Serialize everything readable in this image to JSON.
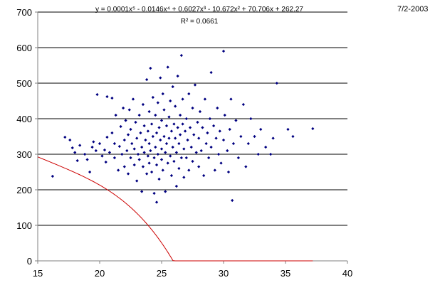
{
  "date_stamp": "7/2-2003",
  "trendline": {
    "equation": "y = 0.0001x⁵ - 0.0146x⁴ + 0.6027x³ - 10.672x² + 70.706x + 262.27",
    "r_squared": "R² = 0.0661",
    "coefficients": [
      0.0001,
      -0.0146,
      0.6027,
      -10.672,
      70.706,
      262.27
    ],
    "x_range": [
      15,
      37.2
    ],
    "color": "#cc0000"
  },
  "chart_data": {
    "type": "scatter",
    "title": "",
    "xlabel": "",
    "ylabel": "",
    "xlim": [
      15,
      40
    ],
    "ylim": [
      0,
      700
    ],
    "x_ticks": [
      15,
      20,
      25,
      30,
      35,
      40
    ],
    "y_ticks": [
      0,
      100,
      200,
      300,
      400,
      500,
      600,
      700
    ],
    "grid": "horizontal",
    "legend": "none",
    "marker_color": "#000080",
    "series": [
      {
        "points": [
          [
            16.2,
            238
          ],
          [
            17.2,
            348
          ],
          [
            17.6,
            340
          ],
          [
            17.8,
            318
          ],
          [
            18.0,
            305
          ],
          [
            18.2,
            282
          ],
          [
            18.4,
            325
          ],
          [
            18.8,
            300
          ],
          [
            19.0,
            285
          ],
          [
            19.2,
            250
          ],
          [
            19.4,
            320
          ],
          [
            19.5,
            335
          ],
          [
            19.7,
            310
          ],
          [
            19.8,
            468
          ],
          [
            20.0,
            330
          ],
          [
            20.2,
            295
          ],
          [
            20.4,
            312
          ],
          [
            20.5,
            278
          ],
          [
            20.6,
            348
          ],
          [
            20.6,
            462
          ],
          [
            20.8,
            305
          ],
          [
            21.0,
            360
          ],
          [
            21.0,
            458
          ],
          [
            21.2,
            290
          ],
          [
            21.2,
            330
          ],
          [
            21.3,
            410
          ],
          [
            21.5,
            255
          ],
          [
            21.6,
            322
          ],
          [
            21.7,
            378
          ],
          [
            21.8,
            300
          ],
          [
            21.9,
            430
          ],
          [
            22.0,
            265
          ],
          [
            22.0,
            340
          ],
          [
            22.1,
            395
          ],
          [
            22.2,
            310
          ],
          [
            22.3,
            245
          ],
          [
            22.3,
            355
          ],
          [
            22.4,
            425
          ],
          [
            22.5,
            290
          ],
          [
            22.5,
            370
          ],
          [
            22.6,
            330
          ],
          [
            22.7,
            455
          ],
          [
            22.8,
            270
          ],
          [
            22.8,
            315
          ],
          [
            22.9,
            390
          ],
          [
            23.0,
            225
          ],
          [
            23.0,
            345
          ],
          [
            23.1,
            300
          ],
          [
            23.2,
            410
          ],
          [
            23.2,
            285
          ],
          [
            23.3,
            360
          ],
          [
            23.4,
            195
          ],
          [
            23.4,
            320
          ],
          [
            23.5,
            440
          ],
          [
            23.5,
            265
          ],
          [
            23.6,
            380
          ],
          [
            23.6,
            305
          ],
          [
            23.7,
            340
          ],
          [
            23.8,
            245
          ],
          [
            23.8,
            510
          ],
          [
            23.9,
            295
          ],
          [
            23.9,
            365
          ],
          [
            24.0,
            420
          ],
          [
            24.0,
            275
          ],
          [
            24.0,
            330
          ],
          [
            24.1,
            542
          ],
          [
            24.1,
            310
          ],
          [
            24.2,
            385
          ],
          [
            24.2,
            250
          ],
          [
            24.3,
            350
          ],
          [
            24.3,
            460
          ],
          [
            24.4,
            290
          ],
          [
            24.4,
            190
          ],
          [
            24.5,
            410
          ],
          [
            24.5,
            320
          ],
          [
            24.6,
            165
          ],
          [
            24.6,
            360
          ],
          [
            24.6,
            270
          ],
          [
            24.7,
            445
          ],
          [
            24.7,
            300
          ],
          [
            24.8,
            375
          ],
          [
            24.8,
            230
          ],
          [
            24.9,
            340
          ],
          [
            24.9,
            515
          ],
          [
            25.0,
            285
          ],
          [
            25.0,
            395
          ],
          [
            25.0,
            315
          ],
          [
            25.1,
            470
          ],
          [
            25.1,
            255
          ],
          [
            25.2,
            350
          ],
          [
            25.2,
            425
          ],
          [
            25.3,
            305
          ],
          [
            25.3,
            195
          ],
          [
            25.4,
            380
          ],
          [
            25.4,
            330
          ],
          [
            25.5,
            545
          ],
          [
            25.5,
            275
          ],
          [
            25.6,
            405
          ],
          [
            25.6,
            345
          ],
          [
            25.7,
            295
          ],
          [
            25.7,
            450
          ],
          [
            25.8,
            365
          ],
          [
            25.8,
            240
          ],
          [
            25.9,
            320
          ],
          [
            25.9,
            490
          ],
          [
            26.0,
            385
          ],
          [
            26.0,
            280
          ],
          [
            26.1,
            345
          ],
          [
            26.1,
            435
          ],
          [
            26.2,
            305
          ],
          [
            26.2,
            210
          ],
          [
            26.3,
            375
          ],
          [
            26.3,
            520
          ],
          [
            26.4,
            330
          ],
          [
            26.4,
            260
          ],
          [
            26.5,
            410
          ],
          [
            26.5,
            355
          ],
          [
            26.6,
            578
          ],
          [
            26.6,
            290
          ],
          [
            26.7,
            385
          ],
          [
            26.7,
            455
          ],
          [
            26.8,
            315
          ],
          [
            26.8,
            235
          ],
          [
            26.9,
            365
          ],
          [
            27.0,
            400
          ],
          [
            27.0,
            290
          ],
          [
            27.1,
            340
          ],
          [
            27.2,
            470
          ],
          [
            27.2,
            255
          ],
          [
            27.3,
            375
          ],
          [
            27.4,
            320
          ],
          [
            27.5,
            430
          ],
          [
            27.5,
            280
          ],
          [
            27.6,
            355
          ],
          [
            27.7,
            495
          ],
          [
            27.8,
            305
          ],
          [
            27.9,
            390
          ],
          [
            28.0,
            265
          ],
          [
            28.0,
            345
          ],
          [
            28.1,
            420
          ],
          [
            28.2,
            310
          ],
          [
            28.3,
            375
          ],
          [
            28.4,
            240
          ],
          [
            28.5,
            455
          ],
          [
            28.6,
            330
          ],
          [
            28.7,
            360
          ],
          [
            28.8,
            290
          ],
          [
            28.9,
            400
          ],
          [
            29.0,
            530
          ],
          [
            29.0,
            320
          ],
          [
            29.2,
            380
          ],
          [
            29.3,
            255
          ],
          [
            29.4,
            345
          ],
          [
            29.5,
            430
          ],
          [
            29.6,
            300
          ],
          [
            29.7,
            365
          ],
          [
            29.8,
            275
          ],
          [
            30.0,
            590
          ],
          [
            30.0,
            340
          ],
          [
            30.1,
            410
          ],
          [
            30.3,
            310
          ],
          [
            30.4,
            250
          ],
          [
            30.5,
            370
          ],
          [
            30.6,
            455
          ],
          [
            30.7,
            170
          ],
          [
            30.8,
            330
          ],
          [
            31.0,
            395
          ],
          [
            31.2,
            290
          ],
          [
            31.4,
            350
          ],
          [
            31.6,
            440
          ],
          [
            31.8,
            265
          ],
          [
            32.0,
            330
          ],
          [
            32.2,
            400
          ],
          [
            32.5,
            350
          ],
          [
            32.8,
            300
          ],
          [
            33.0,
            370
          ],
          [
            33.4,
            320
          ],
          [
            33.8,
            300
          ],
          [
            34.0,
            345
          ],
          [
            34.3,
            500
          ],
          [
            35.2,
            370
          ],
          [
            35.6,
            350
          ],
          [
            37.2,
            372
          ]
        ]
      }
    ]
  }
}
